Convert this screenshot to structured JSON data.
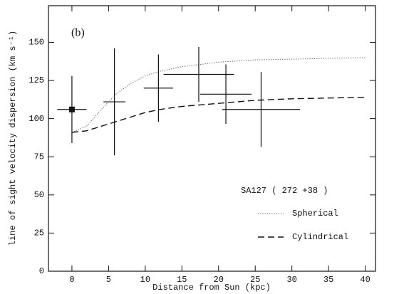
{
  "chart_data": {
    "type": "errorbar",
    "annotations": [
      "(b)",
      "SA127 ( 272 +38 )"
    ],
    "xlabel": "Distance from Sun (kpc)",
    "ylabel": "line of sight velocity dispersion (km s⁻¹)",
    "xlim": [
      -3.2,
      41.4
    ],
    "ylim": [
      0,
      174
    ],
    "xticks": [
      0,
      5,
      10,
      15,
      20,
      25,
      30,
      35,
      40
    ],
    "yticks": [
      0,
      25,
      50,
      75,
      100,
      125,
      150
    ],
    "errorbars": [
      {
        "marker": "square",
        "x": [
          0
        ],
        "values": [
          106
        ],
        "xerr": [
          2
        ],
        "yerr": [
          22
        ]
      },
      {
        "marker": "none",
        "x": [
          5.8,
          11.8,
          17.3,
          21,
          25.8
        ],
        "values": [
          111,
          120,
          129,
          116,
          106
        ],
        "xerr": [
          1.5,
          2,
          4.8,
          3.5,
          5.3
        ],
        "yerr": [
          35,
          22,
          18,
          19.5,
          24.5
        ]
      }
    ],
    "series": [
      {
        "name": "Spherical",
        "style": "dotted",
        "color": "#555555",
        "x": [
          0,
          2,
          4,
          6,
          8,
          10,
          12,
          15,
          20,
          25,
          30,
          40
        ],
        "values": [
          91,
          95,
          106,
          116,
          123,
          128,
          131,
          134,
          137,
          138.5,
          139,
          140
        ]
      },
      {
        "name": "Cylindrical",
        "style": "dashed",
        "color": "#111111",
        "x": [
          0,
          2,
          4,
          6,
          8,
          10,
          12,
          15,
          20,
          25,
          30,
          40
        ],
        "values": [
          91,
          92,
          95,
          98,
          101,
          104,
          106,
          108,
          110,
          112,
          113,
          114
        ]
      }
    ]
  }
}
